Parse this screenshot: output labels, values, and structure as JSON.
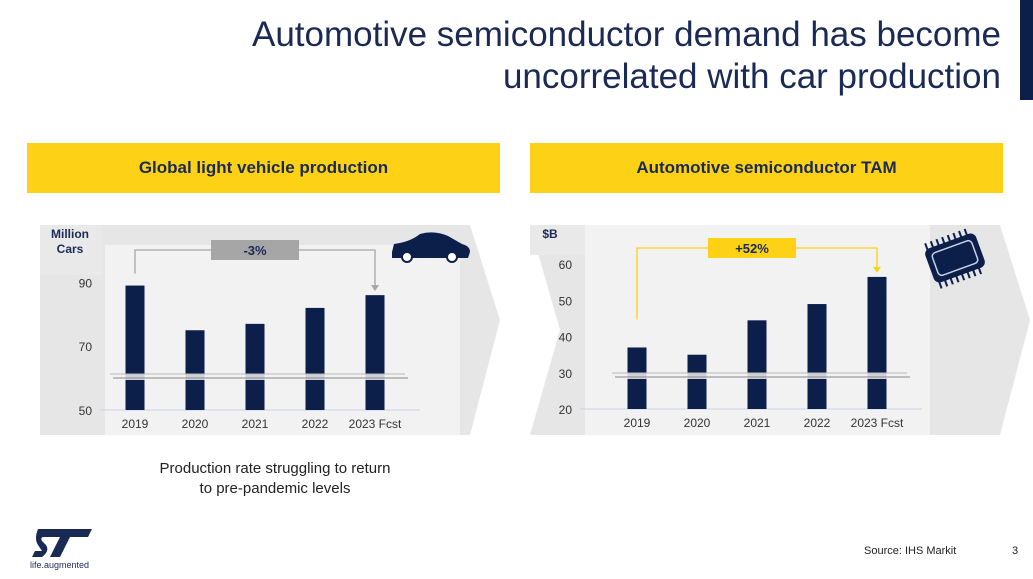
{
  "title": {
    "line1": "Automotive semiconductor demand has become",
    "line2": "uncorrelated with car production"
  },
  "colors": {
    "navy": "#0b1f4a",
    "yellow": "#fcd116",
    "gray_annotation": "#a6a6a6"
  },
  "caption": {
    "line1": "Production rate struggling to return",
    "line2": "to pre-pandemic levels"
  },
  "footer": {
    "source": "Source: IHS Markit",
    "page": "3",
    "logo_text": "ST",
    "tagline": "life.augmented"
  },
  "chart_data": [
    {
      "type": "bar",
      "title": "Global light vehicle production",
      "ylabel": "Million Cars",
      "icon": "car-icon",
      "categories": [
        "2019",
        "2020",
        "2021",
        "2022",
        "2023 Fcst"
      ],
      "values": [
        89,
        75,
        77,
        82,
        86
      ],
      "yticks": [
        "50",
        "70",
        "90"
      ],
      "ylim": [
        50,
        92
      ],
      "axis_break": true,
      "annotation": {
        "label": "-3%",
        "from": "2019",
        "to": "2023 Fcst",
        "color": "#a6a6a6"
      }
    },
    {
      "type": "bar",
      "title": "Automotive semiconductor TAM",
      "ylabel": "$B",
      "icon": "chip-icon",
      "categories": [
        "2019",
        "2020",
        "2021",
        "2022",
        "2023 Fcst"
      ],
      "values": [
        37,
        35,
        44.5,
        49,
        56.5
      ],
      "yticks": [
        "20",
        "30",
        "40",
        "50",
        "60"
      ],
      "ylim": [
        20,
        62
      ],
      "axis_break": true,
      "annotation": {
        "label": "+52%",
        "from": "2019",
        "to": "2023 Fcst",
        "color": "#fcd116"
      }
    }
  ]
}
